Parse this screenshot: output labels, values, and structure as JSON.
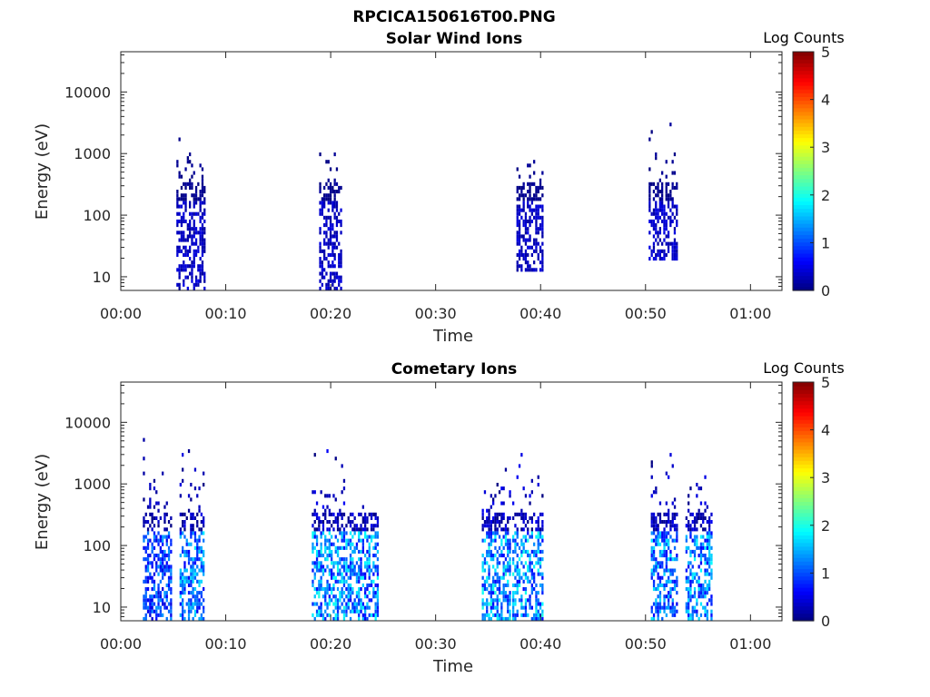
{
  "figure_title": "RPCICA150616T00.PNG",
  "colors": {
    "colormap": [
      "#00007f",
      "#0000ff",
      "#007fff",
      "#00ffff",
      "#7fff7f",
      "#ffff00",
      "#ff7f00",
      "#ff0000",
      "#7f0000"
    ],
    "axis": "#262626"
  },
  "chart_data": [
    {
      "type": "heatmap",
      "title": "Solar Wind Ions",
      "xlabel": "Time",
      "ylabel": "Energy (eV)",
      "y_scale": "log",
      "xlim": [
        "00:00",
        "01:03"
      ],
      "ylim": [
        6,
        45000
      ],
      "x_ticks": [
        "00:00",
        "00:10",
        "00:20",
        "00:30",
        "00:40",
        "00:50",
        "01:00"
      ],
      "y_ticks": [
        "10",
        "100",
        "1000",
        "10000"
      ],
      "colorbar": {
        "label": "Log Counts",
        "range": [
          0,
          5
        ],
        "ticks": [
          "0",
          "1",
          "2",
          "3",
          "4",
          "5"
        ]
      },
      "bursts": [
        {
          "t_start": 5.3,
          "t_end": 8.0,
          "e_low": 6,
          "e_high": 2000,
          "max_log_counts": 0.5
        },
        {
          "t_start": 18.9,
          "t_end": 20.9,
          "e_low": 6,
          "e_high": 2100,
          "max_log_counts": 0.5
        },
        {
          "t_start": 37.7,
          "t_end": 40.1,
          "e_low": 12,
          "e_high": 750,
          "max_log_counts": 0.5
        },
        {
          "t_start": 50.3,
          "t_end": 52.9,
          "e_low": 17,
          "e_high": 4800,
          "max_log_counts": 0.5
        }
      ]
    },
    {
      "type": "heatmap",
      "title": "Cometary Ions",
      "xlabel": "Time",
      "ylabel": "Energy (eV)",
      "y_scale": "log",
      "xlim": [
        "00:00",
        "01:03"
      ],
      "ylim": [
        6,
        45000
      ],
      "x_ticks": [
        "00:00",
        "00:10",
        "00:20",
        "00:30",
        "00:40",
        "00:50",
        "01:00"
      ],
      "y_ticks": [
        "10",
        "100",
        "1000",
        "10000"
      ],
      "colorbar": {
        "label": "Log Counts",
        "range": [
          0,
          5
        ],
        "ticks": [
          "0",
          "1",
          "2",
          "3",
          "4",
          "5"
        ]
      },
      "bursts": [
        {
          "t_start": 2.1,
          "t_end": 4.7,
          "e_low": 6,
          "e_high": 9000,
          "max_log_counts": 1.4
        },
        {
          "t_start": 5.6,
          "t_end": 7.9,
          "e_low": 6,
          "e_high": 3800,
          "max_log_counts": 1.8
        },
        {
          "t_start": 18.2,
          "t_end": 21.2,
          "e_low": 6,
          "e_high": 3800,
          "max_log_counts": 2.0
        },
        {
          "t_start": 21.4,
          "t_end": 24.4,
          "e_low": 6,
          "e_high": 500,
          "max_log_counts": 1.9
        },
        {
          "t_start": 34.4,
          "t_end": 37.0,
          "e_low": 6,
          "e_high": 3300,
          "max_log_counts": 2.1
        },
        {
          "t_start": 37.3,
          "t_end": 40.1,
          "e_low": 6,
          "e_high": 6600,
          "max_log_counts": 2.0
        },
        {
          "t_start": 50.5,
          "t_end": 53.0,
          "e_low": 6,
          "e_high": 3000,
          "max_log_counts": 1.8
        },
        {
          "t_start": 53.8,
          "t_end": 56.2,
          "e_low": 6,
          "e_high": 1500,
          "max_log_counts": 1.9
        }
      ]
    }
  ]
}
